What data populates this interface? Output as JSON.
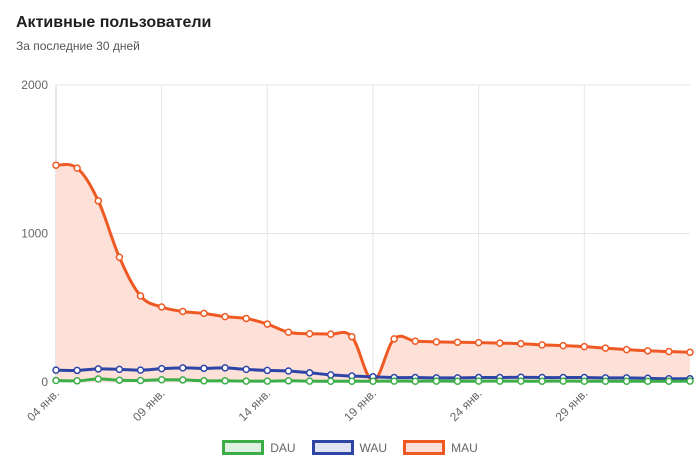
{
  "header": {
    "title": "Активные пользователи",
    "subtitle": "За последние 30 дней"
  },
  "colors": {
    "dau": "#3cae48",
    "wau": "#2f45a6",
    "mau": "#ef5a24",
    "mau_fill": "#fde1d9",
    "grid": "#e6e6e6"
  },
  "chart_data": {
    "type": "line",
    "title": "Активные пользователи",
    "subtitle": "За последние 30 дней",
    "x": [
      "04 янв.",
      "05 янв.",
      "06 янв.",
      "07 янв.",
      "08 янв.",
      "09 янв.",
      "10 янв.",
      "11 янв.",
      "12 янв.",
      "13 янв.",
      "14 янв.",
      "15 янв.",
      "16 янв.",
      "17 янв.",
      "18 янв.",
      "19 янв.",
      "20 янв.",
      "21 янв.",
      "22 янв.",
      "23 янв.",
      "24 янв.",
      "25 янв.",
      "26 янв.",
      "27 янв.",
      "28 янв.",
      "29 янв.",
      "30 янв.",
      "31 янв.",
      "01 февр.",
      "02 февр.",
      "03 февр."
    ],
    "x_tick_labels": [
      "04 янв.",
      "09 янв.",
      "14 янв.",
      "19 янв.",
      "24 янв.",
      "29 янв."
    ],
    "y_ticks": [
      "0",
      "1000",
      "2000"
    ],
    "ylim": [
      0,
      2000
    ],
    "grid": true,
    "legend_position": "bottom",
    "series": [
      {
        "name": "DAU",
        "key": "dau",
        "values": [
          10,
          8,
          20,
          12,
          10,
          15,
          14,
          8,
          8,
          6,
          6,
          8,
          6,
          5,
          5,
          5,
          6,
          5,
          6,
          5,
          6,
          6,
          6,
          5,
          6,
          5,
          5,
          5,
          5,
          5,
          6
        ]
      },
      {
        "name": "WAU",
        "key": "wau",
        "values": [
          80,
          78,
          88,
          85,
          80,
          90,
          95,
          92,
          95,
          85,
          78,
          74,
          62,
          48,
          40,
          35,
          30,
          30,
          28,
          28,
          30,
          30,
          32,
          30,
          30,
          30,
          28,
          28,
          25,
          22,
          22
        ]
      },
      {
        "name": "MAU",
        "key": "mau",
        "values": [
          1460,
          1440,
          1220,
          840,
          580,
          505,
          475,
          462,
          440,
          428,
          390,
          335,
          325,
          322,
          305,
          10,
          290,
          275,
          270,
          268,
          265,
          262,
          258,
          250,
          245,
          238,
          228,
          218,
          210,
          205,
          200
        ],
        "filled": true
      }
    ]
  }
}
